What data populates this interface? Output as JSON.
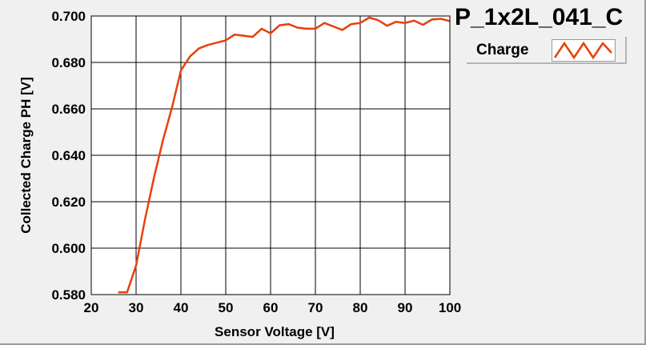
{
  "chart_data": {
    "type": "line",
    "title": "P_1x2L_041_C",
    "xlabel": "Sensor Voltage [V]",
    "ylabel": "Collected Charge PH [V]",
    "xlim": [
      20,
      100
    ],
    "ylim": [
      0.58,
      0.7
    ],
    "xticks": [
      "20",
      "30",
      "40",
      "50",
      "60",
      "70",
      "80",
      "90",
      "100"
    ],
    "yticks": [
      "0.580",
      "0.600",
      "0.620",
      "0.640",
      "0.660",
      "0.680",
      "0.700"
    ],
    "grid": true,
    "legend_position": "top-right",
    "series": [
      {
        "name": "Charge",
        "color": "#e8400c",
        "x": [
          26,
          28,
          30,
          32,
          34,
          36,
          38,
          40,
          42,
          44,
          46,
          48,
          50,
          52,
          54,
          56,
          58,
          60,
          62,
          64,
          66,
          68,
          70,
          72,
          74,
          76,
          78,
          80,
          82,
          84,
          86,
          88,
          90,
          92,
          94,
          96,
          98,
          100
        ],
        "y": [
          0.581,
          0.581,
          0.5925,
          0.6125,
          0.6305,
          0.6465,
          0.6605,
          0.6765,
          0.6825,
          0.686,
          0.6875,
          0.6885,
          0.6895,
          0.692,
          0.6915,
          0.691,
          0.6945,
          0.6925,
          0.696,
          0.6965,
          0.695,
          0.6945,
          0.6945,
          0.697,
          0.6955,
          0.694,
          0.6965,
          0.697,
          0.6993,
          0.6982,
          0.6958,
          0.6975,
          0.697,
          0.698,
          0.6962,
          0.6985,
          0.6988,
          0.6978
        ]
      }
    ]
  },
  "legend": {
    "label": "Charge",
    "icon": "zigzag-line-icon"
  }
}
